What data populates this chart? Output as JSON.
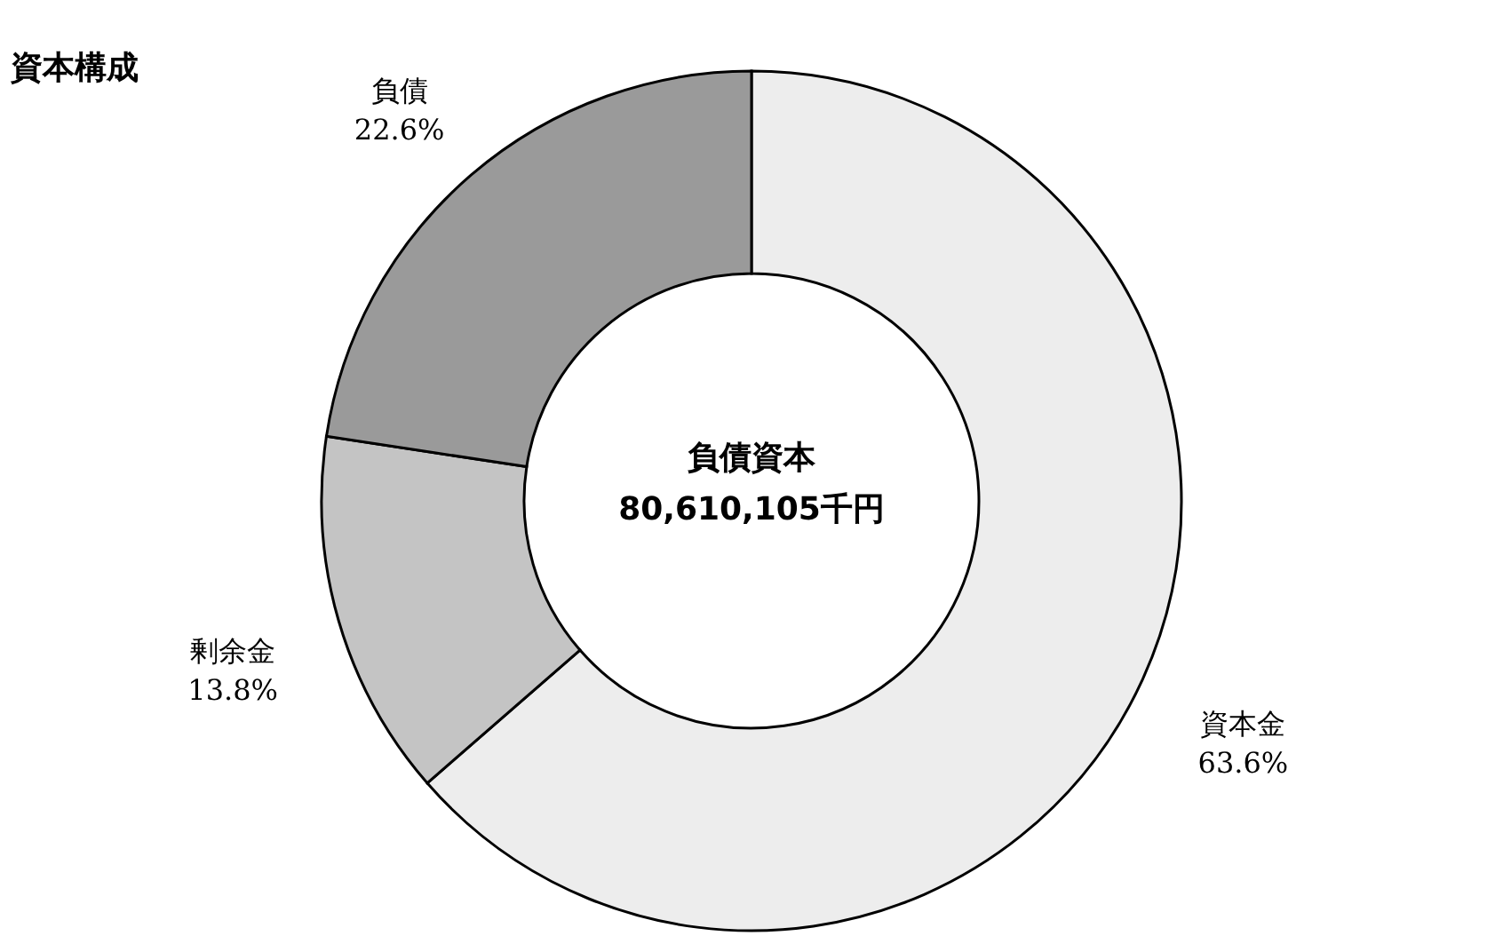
{
  "chart_data": {
    "type": "donut",
    "title": "資本構成",
    "categories": [
      "資本金",
      "剰余金",
      "負債"
    ],
    "values": [
      63.6,
      13.8,
      22.6
    ],
    "value_labels": [
      "63.6%",
      "13.8%",
      "22.6%"
    ],
    "colors": [
      "#ededed",
      "#c4c4c4",
      "#9a9a9a"
    ],
    "annotations": [
      "負債資本",
      "80,610,105千円"
    ]
  }
}
